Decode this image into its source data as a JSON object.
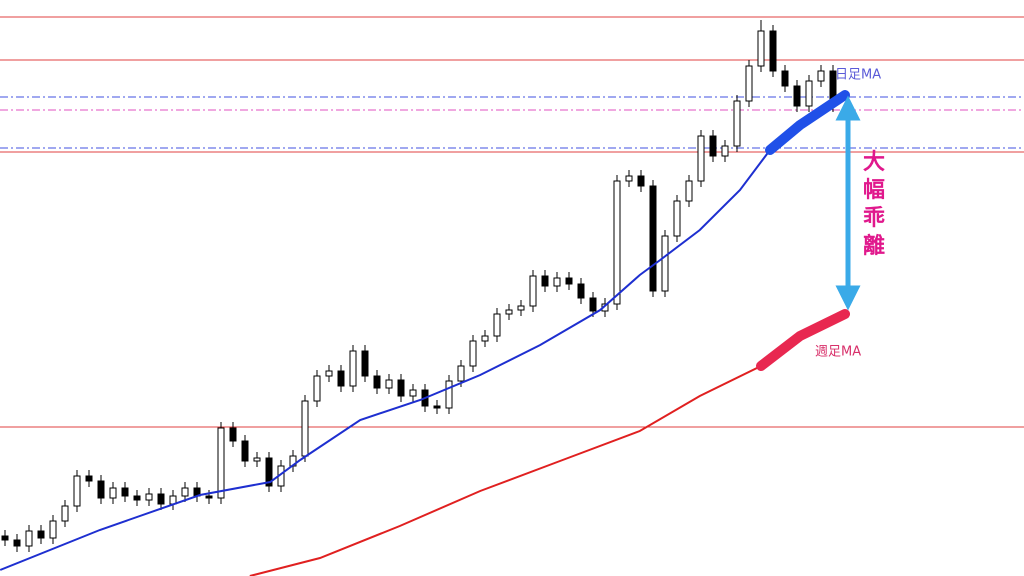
{
  "chart_data": {
    "type": "candlestick",
    "xlim": [
      -0.417,
      84.917
    ],
    "ylim": [
      0,
      576
    ],
    "candles": {
      "open": [
        40,
        36,
        30,
        45,
        38,
        55,
        70,
        100,
        95,
        78,
        88,
        80,
        76,
        82,
        72,
        80,
        88,
        80,
        78,
        148,
        135,
        115,
        118,
        90,
        110,
        120,
        175,
        200,
        205,
        190,
        225,
        200,
        188,
        196,
        180,
        186,
        170,
        168,
        195,
        210,
        235,
        240,
        262,
        266,
        270,
        300,
        290,
        298,
        292,
        278,
        265,
        272,
        395,
        400,
        390,
        285,
        340,
        375,
        395,
        440,
        420,
        430,
        475,
        510,
        545,
        505,
        490,
        470,
        495,
        505
      ],
      "high": [
        46,
        42,
        51,
        51,
        61,
        76,
        106,
        106,
        101,
        94,
        94,
        86,
        88,
        88,
        86,
        94,
        94,
        86,
        154,
        154,
        141,
        124,
        124,
        116,
        126,
        181,
        206,
        211,
        211,
        231,
        231,
        206,
        202,
        202,
        192,
        192,
        176,
        201,
        216,
        241,
        246,
        268,
        272,
        276,
        306,
        306,
        304,
        304,
        298,
        284,
        278,
        401,
        406,
        406,
        396,
        346,
        381,
        401,
        446,
        446,
        436,
        481,
        516,
        556,
        551,
        511,
        496,
        501,
        511,
        511
      ],
      "low": [
        30,
        24,
        24,
        32,
        32,
        49,
        64,
        89,
        72,
        72,
        74,
        70,
        70,
        66,
        66,
        74,
        74,
        72,
        72,
        129,
        109,
        109,
        84,
        84,
        104,
        114,
        169,
        194,
        184,
        184,
        194,
        182,
        182,
        174,
        174,
        164,
        162,
        162,
        189,
        204,
        229,
        234,
        256,
        260,
        264,
        284,
        284,
        286,
        272,
        259,
        259,
        266,
        389,
        384,
        279,
        279,
        334,
        369,
        389,
        414,
        414,
        424,
        469,
        504,
        499,
        484,
        464,
        464,
        489,
        464
      ],
      "close": [
        36,
        30,
        45,
        38,
        55,
        70,
        100,
        95,
        78,
        88,
        80,
        76,
        82,
        72,
        80,
        88,
        80,
        78,
        148,
        135,
        115,
        118,
        90,
        110,
        120,
        175,
        200,
        205,
        190,
        225,
        200,
        188,
        196,
        180,
        186,
        170,
        168,
        195,
        210,
        235,
        240,
        262,
        266,
        270,
        300,
        290,
        298,
        292,
        278,
        265,
        272,
        395,
        400,
        390,
        285,
        340,
        375,
        395,
        440,
        420,
        430,
        475,
        510,
        545,
        505,
        490,
        470,
        495,
        505,
        470
      ]
    },
    "series": [
      {
        "name": "日足MA",
        "color": "#1e2fd0",
        "label_color": "#5a5ad8",
        "x": [
          -0.4,
          7.9,
          16.25,
          22.1,
          24.6,
          29.6,
          34.6,
          39.6,
          44.6,
          49.6,
          52.9,
          54.6,
          57.9,
          61.25,
          63.75,
          66.25,
          70
        ],
        "values": [
          6,
          46,
          81,
          94,
          116,
          156,
          176,
          201,
          231,
          266,
          301,
          316,
          346,
          386,
          426,
          451,
          481
        ]
      },
      {
        "name": "週足MA",
        "color": "#e02020",
        "label_color": "#d8306a",
        "x": [
          20.4,
          26.25,
          32.9,
          39.6,
          46.25,
          52.9,
          57.9,
          63,
          66.25,
          70
        ],
        "values": [
          0,
          18,
          50,
          85,
          115,
          145,
          180,
          210,
          240,
          262
        ]
      }
    ],
    "hlines": [
      {
        "value": 559,
        "color": "#e04040",
        "style": "solid"
      },
      {
        "value": 516,
        "color": "#e04040",
        "style": "solid"
      },
      {
        "value": 424,
        "color": "#e04040",
        "style": "solid"
      },
      {
        "value": 149,
        "color": "#e04040",
        "style": "solid"
      },
      {
        "value": 479,
        "color": "#4050e0",
        "style": "dashdot"
      },
      {
        "value": 466,
        "color": "#e050c0",
        "style": "dashdot"
      },
      {
        "value": 428,
        "color": "#4050e0",
        "style": "dashdot"
      }
    ],
    "annotation": "大幅乖離"
  }
}
